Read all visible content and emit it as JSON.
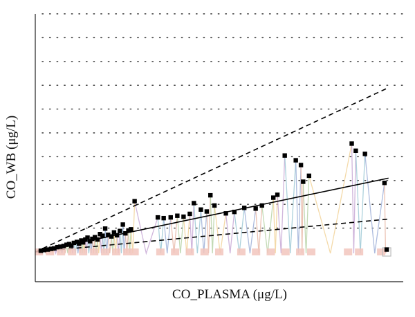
{
  "chart_data": {
    "type": "scatter",
    "xlabel": "CO_PLASMA (μg/L)",
    "ylabel": "CO_WB (μg/L)",
    "xlim": [
      0,
      100
    ],
    "ylim": [
      0,
      10
    ],
    "xticks_labeled": false,
    "yticks_labeled": false,
    "grid": "horizontal-dotted",
    "legend": "none",
    "colors": {
      "points": "#000000",
      "identity_line": "#000000",
      "regression_line": "#000000",
      "lower_bound_line": "#000000",
      "connector_lines": [
        "#9fb0d8",
        "#e7b7a6",
        "#b8d4a8",
        "#f2d39a",
        "#c8a9d6",
        "#9ec9d6"
      ],
      "baseline_markers": "#f2c6bd"
    },
    "reference_lines": [
      {
        "kind": "identity",
        "style": "dashed",
        "x": [
          0,
          96
        ],
        "y": [
          0,
          6.9
        ]
      },
      {
        "kind": "regression",
        "style": "solid",
        "x": [
          0,
          96
        ],
        "y": [
          0,
          3.1
        ]
      },
      {
        "kind": "lower",
        "style": "dashed",
        "x": [
          0,
          96
        ],
        "y": [
          0,
          1.38
        ]
      }
    ],
    "series": [
      {
        "points": [
          {
            "x": 1.5,
            "y": 0.05
          },
          {
            "x": 2.4,
            "y": 0.08
          },
          {
            "x": 3.4,
            "y": 0.1
          },
          {
            "x": 4.3,
            "y": 0.13
          },
          {
            "x": 5.1,
            "y": 0.15
          },
          {
            "x": 6.0,
            "y": 0.2
          },
          {
            "x": 6.8,
            "y": 0.22
          },
          {
            "x": 7.7,
            "y": 0.25
          },
          {
            "x": 8.5,
            "y": 0.3
          },
          {
            "x": 9.2,
            "y": 0.33
          },
          {
            "x": 9.8,
            "y": 0.27
          },
          {
            "x": 10.5,
            "y": 0.38
          },
          {
            "x": 11.3,
            "y": 0.42
          },
          {
            "x": 11.9,
            "y": 0.35
          },
          {
            "x": 12.5,
            "y": 0.48
          },
          {
            "x": 13.0,
            "y": 0.4
          },
          {
            "x": 13.6,
            "y": 0.52
          },
          {
            "x": 14.2,
            "y": 0.6
          },
          {
            "x": 14.9,
            "y": 0.45
          },
          {
            "x": 15.5,
            "y": 0.55
          },
          {
            "x": 16.2,
            "y": 0.62
          },
          {
            "x": 16.9,
            "y": 0.52
          },
          {
            "x": 17.6,
            "y": 0.75
          },
          {
            "x": 18.3,
            "y": 0.68
          },
          {
            "x": 19.0,
            "y": 0.98
          },
          {
            "x": 19.8,
            "y": 0.72
          },
          {
            "x": 20.7,
            "y": 0.65
          },
          {
            "x": 21.4,
            "y": 0.82
          },
          {
            "x": 22.2,
            "y": 0.7
          },
          {
            "x": 23.0,
            "y": 0.88
          },
          {
            "x": 23.8,
            "y": 1.15
          },
          {
            "x": 24.5,
            "y": 0.78
          },
          {
            "x": 25.3,
            "y": 0.9
          },
          {
            "x": 26.0,
            "y": 0.95
          },
          {
            "x": 27.0,
            "y": 2.13
          },
          {
            "x": 33.3,
            "y": 1.45
          },
          {
            "x": 34.9,
            "y": 1.42
          },
          {
            "x": 36.8,
            "y": 1.45
          },
          {
            "x": 38.6,
            "y": 1.52
          },
          {
            "x": 40.3,
            "y": 1.48
          },
          {
            "x": 42.0,
            "y": 1.6
          },
          {
            "x": 43.1,
            "y": 2.05
          },
          {
            "x": 45.0,
            "y": 1.78
          },
          {
            "x": 46.6,
            "y": 1.7
          },
          {
            "x": 47.6,
            "y": 2.38
          },
          {
            "x": 48.7,
            "y": 1.95
          },
          {
            "x": 51.8,
            "y": 1.62
          },
          {
            "x": 54.1,
            "y": 1.68
          },
          {
            "x": 56.8,
            "y": 1.85
          },
          {
            "x": 59.9,
            "y": 1.82
          },
          {
            "x": 61.6,
            "y": 1.95
          },
          {
            "x": 64.7,
            "y": 2.28
          },
          {
            "x": 65.8,
            "y": 2.4
          },
          {
            "x": 67.8,
            "y": 4.05
          },
          {
            "x": 70.8,
            "y": 3.85
          },
          {
            "x": 72.2,
            "y": 3.65
          },
          {
            "x": 72.8,
            "y": 2.95
          },
          {
            "x": 74.4,
            "y": 3.2
          },
          {
            "x": 86.0,
            "y": 4.55
          },
          {
            "x": 87.1,
            "y": 4.25
          },
          {
            "x": 89.6,
            "y": 4.12
          },
          {
            "x": 94.9,
            "y": 2.9
          },
          {
            "x": 95.5,
            "y": 0.1
          }
        ]
      }
    ],
    "baseline_markers_x": [
      1,
      4,
      7,
      10,
      13,
      16,
      19,
      22,
      25,
      27,
      34,
      38,
      42,
      46,
      50,
      56,
      60,
      64,
      68,
      72,
      75,
      85,
      88,
      94
    ]
  }
}
